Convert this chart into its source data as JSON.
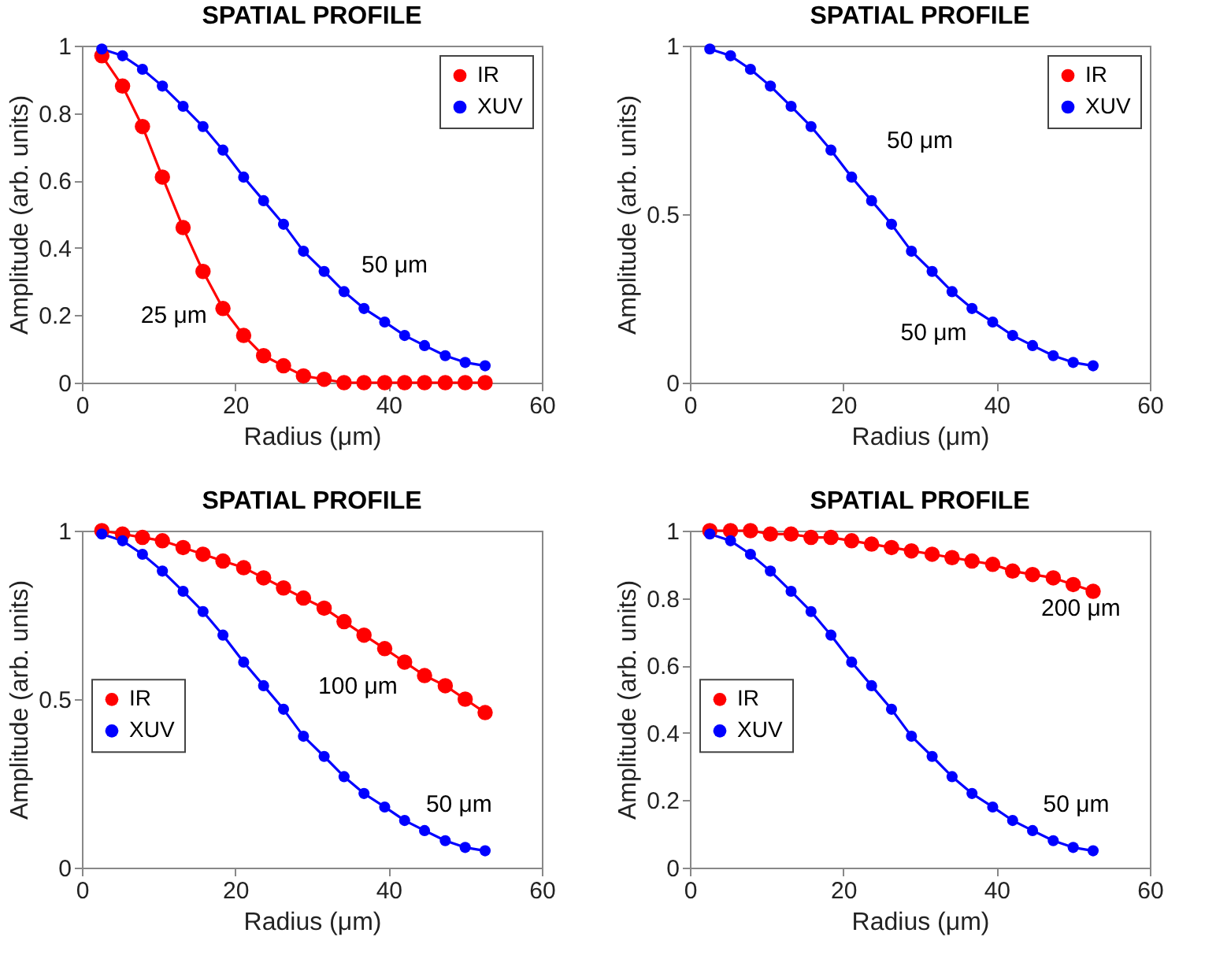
{
  "chart_data": [
    {
      "type": "line",
      "title": "SPATIAL PROFILE",
      "xlabel": "Radius (μm)",
      "ylabel": "Amplitude (arb. units)",
      "x": [
        2.6,
        5.3,
        7.9,
        10.5,
        13.2,
        15.8,
        18.4,
        21.1,
        23.7,
        26.3,
        28.9,
        31.6,
        34.2,
        36.8,
        39.5,
        42.1,
        44.7,
        47.4,
        50,
        52.6
      ],
      "xlim": [
        0,
        60
      ],
      "xticks": [
        0,
        20,
        40,
        60
      ],
      "ylim": [
        0,
        1
      ],
      "yticks": [
        0,
        0.2,
        0.4,
        0.6,
        0.8,
        1
      ],
      "marker": "circle",
      "line_style": "solid",
      "legend": "top right",
      "series": [
        {
          "name": "IR",
          "color": "#ff0000",
          "values": [
            0.97,
            0.88,
            0.76,
            0.61,
            0.46,
            0.33,
            0.22,
            0.14,
            0.08,
            0.05,
            0.02,
            0.01,
            0,
            0,
            0,
            0,
            0,
            0,
            0,
            0
          ]
        },
        {
          "name": "XUV",
          "color": "#0000ff",
          "values": [
            0.99,
            0.97,
            0.93,
            0.88,
            0.82,
            0.76,
            0.69,
            0.61,
            0.54,
            0.47,
            0.39,
            0.33,
            0.27,
            0.22,
            0.18,
            0.14,
            0.11,
            0.08,
            0.06,
            0.05
          ]
        }
      ],
      "annotations": [
        "25 μm",
        "50 μm"
      ]
    },
    {
      "type": "line",
      "title": "SPATIAL PROFILE",
      "xlabel": "Radius (μm)",
      "ylabel": "Amplitude (arb. units)",
      "x": [
        2.6,
        5.3,
        7.9,
        10.5,
        13.2,
        15.8,
        18.4,
        21.1,
        23.7,
        26.3,
        28.9,
        31.6,
        34.2,
        36.8,
        39.5,
        42.1,
        44.7,
        47.4,
        50,
        52.6
      ],
      "xlim": [
        0,
        60
      ],
      "xticks": [
        0,
        20,
        40,
        60
      ],
      "ylim": [
        0,
        1
      ],
      "yticks": [
        0,
        0.5,
        1
      ],
      "marker": "circle",
      "line_style": "solid",
      "legend": "top right",
      "series": [
        {
          "name": "IR",
          "color": "#ff0000",
          "values": [
            null,
            null,
            null,
            null,
            null,
            null,
            null,
            null,
            null,
            null,
            null,
            null,
            null,
            null,
            null,
            null,
            null,
            null,
            null,
            null
          ]
        },
        {
          "name": "XUV",
          "color": "#0000ff",
          "values": [
            0.99,
            0.97,
            0.93,
            0.88,
            0.82,
            0.76,
            0.69,
            0.61,
            0.54,
            0.47,
            0.39,
            0.33,
            0.27,
            0.22,
            0.18,
            0.14,
            0.11,
            0.08,
            0.06,
            0.05
          ]
        }
      ],
      "annotations": [
        "50 μm",
        "50 μm"
      ]
    },
    {
      "type": "line",
      "title": "SPATIAL PROFILE",
      "xlabel": "Radius (μm)",
      "ylabel": "Amplitude (arb. units)",
      "x": [
        2.6,
        5.3,
        7.9,
        10.5,
        13.2,
        15.8,
        18.4,
        21.1,
        23.7,
        26.3,
        28.9,
        31.6,
        34.2,
        36.8,
        39.5,
        42.1,
        44.7,
        47.4,
        50,
        52.6
      ],
      "xlim": [
        0,
        60
      ],
      "xticks": [
        0,
        20,
        40,
        60
      ],
      "ylim": [
        0,
        1
      ],
      "yticks": [
        0,
        0.5,
        1
      ],
      "marker": "circle",
      "line_style": "solid",
      "legend": "left",
      "series": [
        {
          "name": "IR",
          "color": "#ff0000",
          "values": [
            1.0,
            0.99,
            0.98,
            0.97,
            0.95,
            0.93,
            0.91,
            0.89,
            0.86,
            0.83,
            0.8,
            0.77,
            0.73,
            0.69,
            0.65,
            0.61,
            0.57,
            0.54,
            0.5,
            0.46
          ]
        },
        {
          "name": "XUV",
          "color": "#0000ff",
          "values": [
            0.99,
            0.97,
            0.93,
            0.88,
            0.82,
            0.76,
            0.69,
            0.61,
            0.54,
            0.47,
            0.39,
            0.33,
            0.27,
            0.22,
            0.18,
            0.14,
            0.11,
            0.08,
            0.06,
            0.05
          ]
        }
      ],
      "annotations": [
        "100 μm",
        "50 μm"
      ]
    },
    {
      "type": "line",
      "title": "SPATIAL PROFILE",
      "xlabel": "Radius (μm)",
      "ylabel": "Amplitude (arb. units)",
      "x": [
        2.6,
        5.3,
        7.9,
        10.5,
        13.2,
        15.8,
        18.4,
        21.1,
        23.7,
        26.3,
        28.9,
        31.6,
        34.2,
        36.8,
        39.5,
        42.1,
        44.7,
        47.4,
        50,
        52.6
      ],
      "xlim": [
        0,
        60
      ],
      "xticks": [
        0,
        20,
        40,
        60
      ],
      "ylim": [
        0,
        1
      ],
      "yticks": [
        0,
        0.2,
        0.4,
        0.6,
        0.8,
        1
      ],
      "marker": "circle",
      "line_style": "solid",
      "legend": "left",
      "series": [
        {
          "name": "IR",
          "color": "#ff0000",
          "values": [
            1.0,
            1.0,
            1.0,
            0.99,
            0.99,
            0.98,
            0.98,
            0.97,
            0.96,
            0.95,
            0.94,
            0.93,
            0.92,
            0.91,
            0.9,
            0.88,
            0.87,
            0.86,
            0.84,
            0.82
          ]
        },
        {
          "name": "XUV",
          "color": "#0000ff",
          "values": [
            0.99,
            0.97,
            0.93,
            0.88,
            0.82,
            0.76,
            0.69,
            0.61,
            0.54,
            0.47,
            0.39,
            0.33,
            0.27,
            0.22,
            0.18,
            0.14,
            0.11,
            0.08,
            0.06,
            0.05
          ]
        }
      ],
      "annotations": [
        "200 μm",
        "50 μm"
      ]
    }
  ]
}
